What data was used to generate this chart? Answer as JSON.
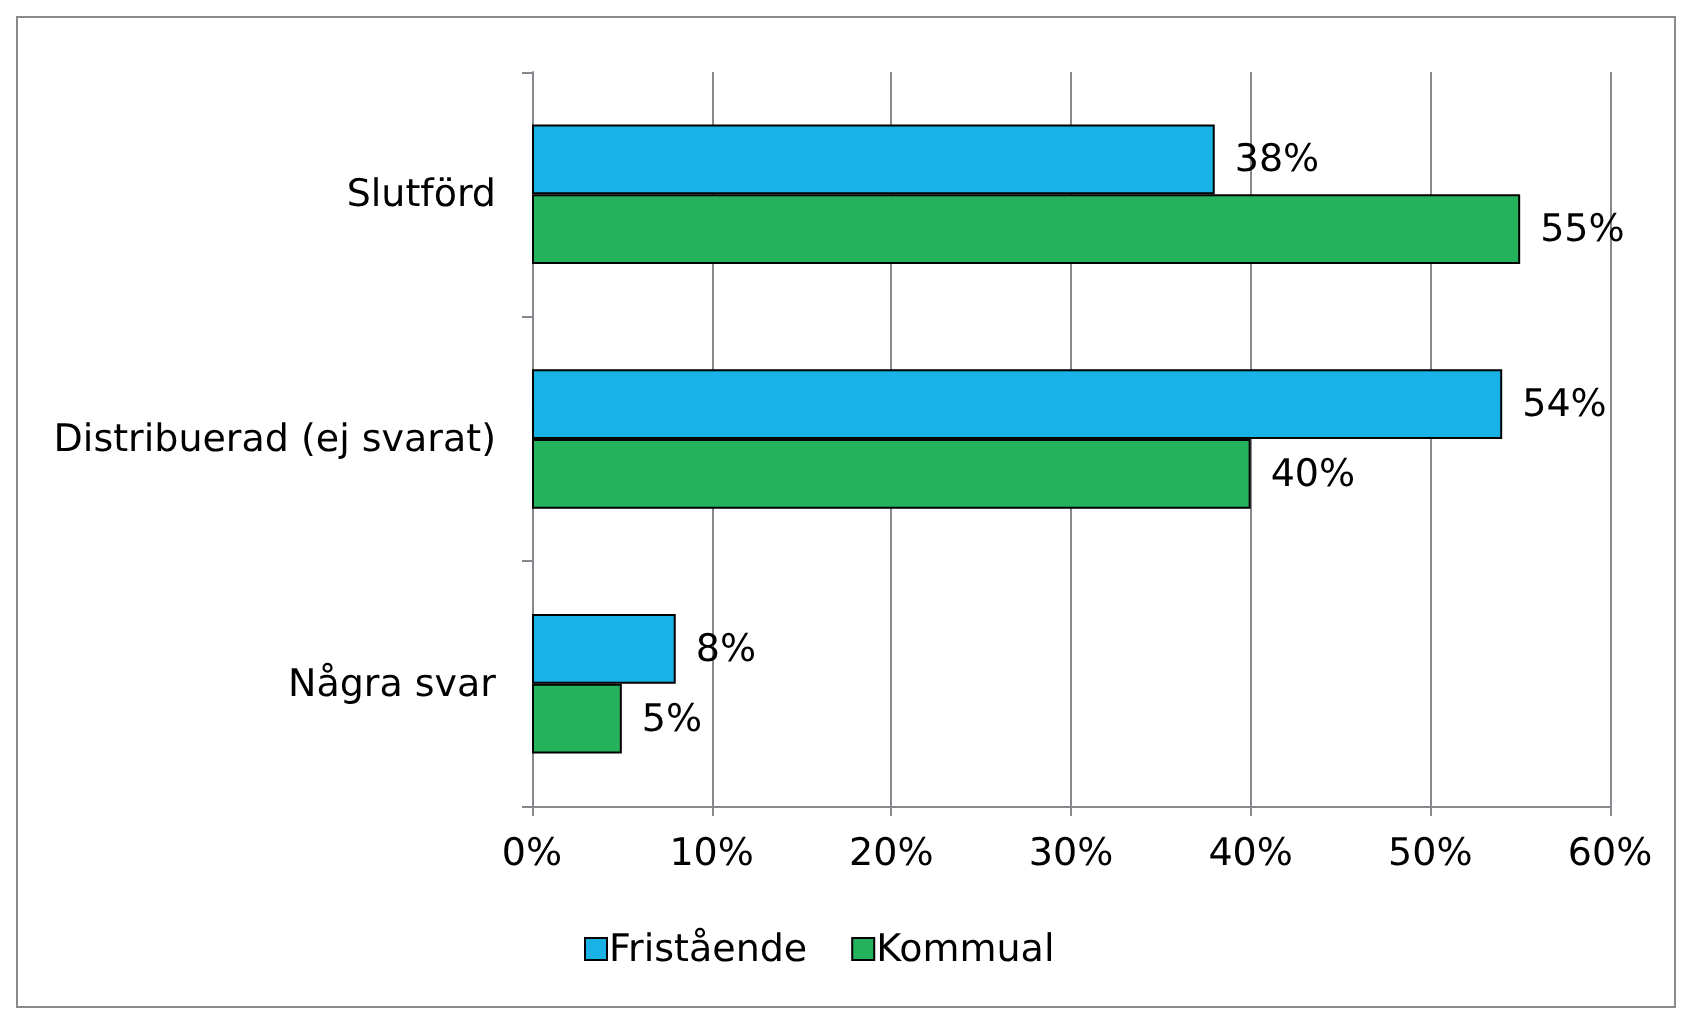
{
  "chart_data": {
    "type": "bar",
    "orientation": "horizontal",
    "categories": [
      "Slutförd",
      "Distribuerad (ej svarat)",
      "Några svar"
    ],
    "series": [
      {
        "name": "Fristående",
        "color": "#19b2e7",
        "values": [
          38,
          54,
          8
        ],
        "value_labels": [
          "38%",
          "54%",
          "8%"
        ]
      },
      {
        "name": "Kommual",
        "color": "#25b25c",
        "values": [
          55,
          40,
          5
        ],
        "value_labels": [
          "55%",
          "40%",
          "5%"
        ]
      }
    ],
    "xlim": [
      0,
      60
    ],
    "xticks": [
      {
        "value": 0,
        "label": "0%"
      },
      {
        "value": 10,
        "label": "10%"
      },
      {
        "value": 20,
        "label": "20%"
      },
      {
        "value": 30,
        "label": "30%"
      },
      {
        "value": 40,
        "label": "40%"
      },
      {
        "value": 50,
        "label": "50%"
      },
      {
        "value": 60,
        "label": "60%"
      }
    ],
    "grid": "x",
    "legend": "bottom"
  }
}
